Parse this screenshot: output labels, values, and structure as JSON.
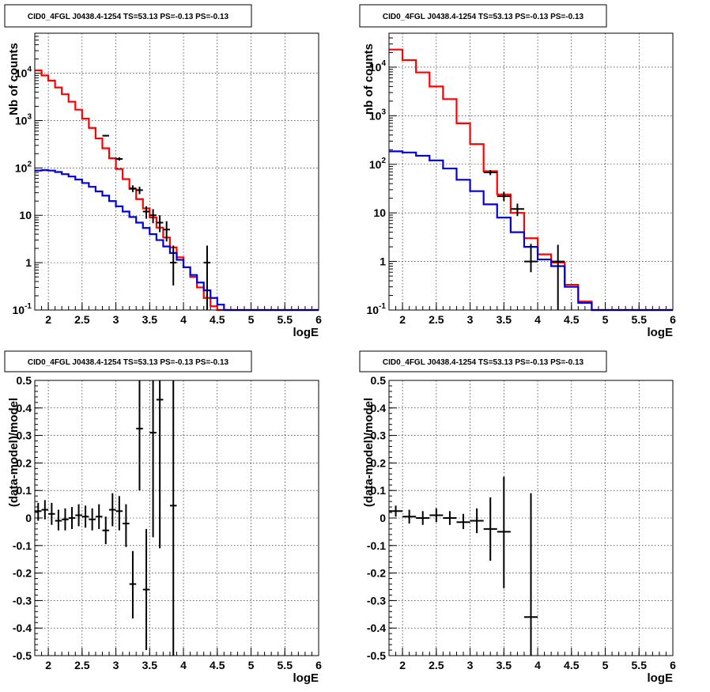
{
  "chart_data": [
    {
      "type": "line",
      "title": "CID0_4FGL J0438.4-1254 TS=53.13 PS=-0.13 PS=-0.13",
      "xlabel": "logE",
      "ylabel": "Nb of counts",
      "xlim": [
        1.8,
        6
      ],
      "ylim": [
        0.1,
        70000
      ],
      "yscale": "log",
      "grid": true,
      "x_ticks": [
        "2",
        "2.5",
        "3",
        "3.5",
        "4",
        "4.5",
        "5",
        "5.5",
        "6"
      ],
      "y_ticks": [
        "10^-1",
        "1",
        "10",
        "10^2",
        "10^3",
        "10^4"
      ],
      "bin_edges": [
        1.8,
        1.9,
        2.0,
        2.1,
        2.2,
        2.3,
        2.4,
        2.5,
        2.6,
        2.7,
        2.8,
        2.9,
        3.0,
        3.1,
        3.2,
        3.3,
        3.4,
        3.5,
        3.6,
        3.7,
        3.8,
        3.9,
        4.0,
        4.1,
        4.2,
        4.3,
        4.4,
        4.5,
        4.6,
        4.7,
        4.8,
        4.9,
        5.0,
        5.1,
        5.2,
        5.3,
        5.4,
        5.5,
        5.6,
        5.7,
        5.8,
        5.9,
        6.0
      ],
      "series": [
        {
          "color": "#ff0000",
          "style": "step",
          "values": [
            11500,
            9000,
            7000,
            5000,
            3600,
            2500,
            1700,
            1100,
            700,
            420,
            260,
            160,
            95,
            58,
            36,
            22,
            14,
            9,
            5.5,
            3.4,
            2.1,
            1.3,
            0.8,
            0.5,
            0.3,
            0.18,
            0.12,
            0.1,
            0.1,
            0.1,
            0.1,
            0.1,
            0.1,
            0.1,
            0.1,
            0.1,
            0.1,
            0.1,
            0.1,
            0.1,
            0.1,
            0.1
          ]
        },
        {
          "color": "#0000dd",
          "style": "step",
          "values": [
            88,
            90,
            88,
            82,
            74,
            66,
            57,
            48,
            40,
            32,
            26,
            20,
            15.5,
            12,
            9.2,
            7,
            5.4,
            4,
            3,
            2.2,
            1.6,
            1.15,
            0.8,
            0.55,
            0.38,
            0.26,
            0.18,
            0.13,
            0.1,
            0.1,
            0.1,
            0.1,
            0.1,
            0.1,
            0.1,
            0.1,
            0.1,
            0.1,
            0.1,
            0.1,
            0.1,
            0.1
          ]
        },
        {
          "color": "#000000",
          "style": "points",
          "points": [
            {
              "x": 2.85,
              "y": 480,
              "xerr": 0.05,
              "ylo": 460,
              "yhi": 500
            },
            {
              "x": 3.05,
              "y": 155,
              "xerr": 0.05,
              "ylo": 143,
              "yhi": 168
            },
            {
              "x": 3.25,
              "y": 37,
              "xerr": 0.05,
              "ylo": 31,
              "yhi": 43
            },
            {
              "x": 3.35,
              "y": 34,
              "xerr": 0.05,
              "ylo": 28,
              "yhi": 40
            },
            {
              "x": 3.45,
              "y": 12,
              "xerr": 0.05,
              "ylo": 8.5,
              "yhi": 15.5
            },
            {
              "x": 3.55,
              "y": 10,
              "xerr": 0.05,
              "ylo": 6.8,
              "yhi": 13.5
            },
            {
              "x": 3.65,
              "y": 7,
              "xerr": 0.05,
              "ylo": 4.4,
              "yhi": 10
            },
            {
              "x": 3.75,
              "y": 5,
              "xerr": 0.05,
              "ylo": 2.8,
              "yhi": 7.5
            },
            {
              "x": 3.85,
              "y": 1,
              "xerr": 0.05,
              "ylo": 0.33,
              "yhi": 2.3
            },
            {
              "x": 4.35,
              "y": 1,
              "xerr": 0.05,
              "ylo": 0.1,
              "yhi": 2.3
            }
          ]
        }
      ]
    },
    {
      "type": "line",
      "title": "CID0_4FGL J0438.4-1254 TS=53.13 PS=-0.13 PS=-0.13",
      "xlabel": "logE",
      "ylabel": "nb of counts",
      "xlim": [
        1.8,
        6
      ],
      "ylim": [
        0.1,
        50000
      ],
      "yscale": "log",
      "grid": true,
      "x_ticks": [
        "2",
        "2.5",
        "3",
        "3.5",
        "4",
        "4.5",
        "5",
        "5.5",
        "6"
      ],
      "y_ticks": [
        "10^-1",
        "1",
        "10",
        "10^2",
        "10^3",
        "10^4"
      ],
      "bin_edges": [
        1.8,
        2.0,
        2.2,
        2.4,
        2.6,
        2.8,
        3.0,
        3.2,
        3.4,
        3.6,
        3.8,
        4.0,
        4.2,
        4.4,
        4.6,
        4.8,
        5.0,
        5.2,
        5.4,
        5.6,
        5.8,
        6.0
      ],
      "series": [
        {
          "color": "#ff0000",
          "style": "step",
          "values": [
            23000,
            14000,
            7800,
            4000,
            2200,
            700,
            260,
            72,
            24,
            10,
            3,
            1.4,
            0.95,
            0.33,
            0.15,
            0.1,
            0.1,
            0.1,
            0.1,
            0.1,
            0.1
          ]
        },
        {
          "color": "#0000dd",
          "style": "step",
          "values": [
            185,
            175,
            150,
            120,
            82,
            48,
            28,
            15,
            8,
            4,
            2,
            1.1,
            0.8,
            0.3,
            0.14,
            0.1,
            0.1,
            0.1,
            0.1,
            0.1,
            0.1
          ]
        },
        {
          "color": "#000000",
          "style": "points",
          "points": [
            {
              "x": 3.3,
              "y": 68,
              "xerr": 0.1,
              "ylo": 60,
              "yhi": 76
            },
            {
              "x": 3.5,
              "y": 22,
              "xerr": 0.1,
              "ylo": 17.5,
              "yhi": 27
            },
            {
              "x": 3.7,
              "y": 12,
              "xerr": 0.1,
              "ylo": 8.6,
              "yhi": 15.5
            },
            {
              "x": 3.9,
              "y": 1,
              "xerr": 0.1,
              "ylo": 0.6,
              "yhi": 2.3
            },
            {
              "x": 4.3,
              "y": 1,
              "xerr": 0.1,
              "ylo": 0.1,
              "yhi": 2.2
            }
          ]
        }
      ]
    },
    {
      "type": "scatter",
      "title": "CID0_4FGL J0438.4-1254 TS=53.13 PS=-0.13 PS=-0.13",
      "xlabel": "logE",
      "ylabel": "(data-model)/model",
      "xlim": [
        1.8,
        6
      ],
      "ylim": [
        -0.5,
        0.5
      ],
      "yscale": "linear",
      "grid": true,
      "x_ticks": [
        "2",
        "2.5",
        "3",
        "3.5",
        "4",
        "4.5",
        "5",
        "5.5",
        "6"
      ],
      "y_ticks": [
        "-0.5",
        "-0.4",
        "-0.3",
        "-0.2",
        "-0.1",
        "0",
        "0.1",
        "0.2",
        "0.3",
        "0.4",
        "0.5"
      ],
      "series": [
        {
          "color": "#000000",
          "style": "points",
          "points": [
            {
              "x": 1.85,
              "y": 0.025,
              "xerr": 0.05,
              "ylo": -0.01,
              "yhi": 0.055
            },
            {
              "x": 1.95,
              "y": 0.03,
              "xerr": 0.05,
              "ylo": -0.005,
              "yhi": 0.065
            },
            {
              "x": 2.05,
              "y": 0.015,
              "xerr": 0.05,
              "ylo": -0.025,
              "yhi": 0.055
            },
            {
              "x": 2.15,
              "y": -0.01,
              "xerr": 0.05,
              "ylo": -0.045,
              "yhi": 0.03
            },
            {
              "x": 2.25,
              "y": -0.005,
              "xerr": 0.05,
              "ylo": -0.045,
              "yhi": 0.035
            },
            {
              "x": 2.35,
              "y": 0.0,
              "xerr": 0.05,
              "ylo": -0.04,
              "yhi": 0.04
            },
            {
              "x": 2.45,
              "y": 0.01,
              "xerr": 0.05,
              "ylo": -0.03,
              "yhi": 0.05
            },
            {
              "x": 2.55,
              "y": 0.005,
              "xerr": 0.05,
              "ylo": -0.035,
              "yhi": 0.045
            },
            {
              "x": 2.65,
              "y": -0.005,
              "xerr": 0.05,
              "ylo": -0.045,
              "yhi": 0.035
            },
            {
              "x": 2.75,
              "y": 0.005,
              "xerr": 0.05,
              "ylo": -0.04,
              "yhi": 0.05
            },
            {
              "x": 2.85,
              "y": -0.045,
              "xerr": 0.05,
              "ylo": -0.095,
              "yhi": 0.005
            },
            {
              "x": 2.95,
              "y": 0.03,
              "xerr": 0.05,
              "ylo": -0.03,
              "yhi": 0.09
            },
            {
              "x": 3.05,
              "y": 0.025,
              "xerr": 0.05,
              "ylo": -0.045,
              "yhi": 0.08
            },
            {
              "x": 3.15,
              "y": -0.02,
              "xerr": 0.05,
              "ylo": -0.105,
              "yhi": 0.05
            },
            {
              "x": 3.25,
              "y": -0.24,
              "xerr": 0.05,
              "ylo": -0.365,
              "yhi": -0.12
            },
            {
              "x": 3.35,
              "y": 0.325,
              "xerr": 0.05,
              "ylo": 0.1,
              "yhi": 0.5
            },
            {
              "x": 3.45,
              "y": -0.26,
              "xerr": 0.05,
              "ylo": -0.48,
              "yhi": -0.04
            },
            {
              "x": 3.55,
              "y": 0.31,
              "xerr": 0.05,
              "ylo": -0.07,
              "yhi": 0.5
            },
            {
              "x": 3.65,
              "y": 0.43,
              "xerr": 0.05,
              "ylo": -0.11,
              "yhi": 0.5
            },
            {
              "x": 3.85,
              "y": 0.045,
              "xerr": 0.05,
              "ylo": -0.5,
              "yhi": 0.5
            }
          ]
        }
      ]
    },
    {
      "type": "scatter",
      "title": "CID0_4FGL J0438.4-1254 TS=53.13 PS=-0.13 PS=-0.13",
      "xlabel": "logE",
      "ylabel": "(data-model)/model",
      "xlim": [
        1.8,
        6
      ],
      "ylim": [
        -0.5,
        0.5
      ],
      "yscale": "linear",
      "grid": true,
      "x_ticks": [
        "2",
        "2.5",
        "3",
        "3.5",
        "4",
        "4.5",
        "5",
        "5.5",
        "6"
      ],
      "y_ticks": [
        "-0.5",
        "-0.4",
        "-0.3",
        "-0.2",
        "-0.1",
        "0",
        "0.1",
        "0.2",
        "0.3",
        "0.4",
        "0.5"
      ],
      "series": [
        {
          "color": "#000000",
          "style": "points",
          "points": [
            {
              "x": 1.9,
              "y": 0.025,
              "xerr": 0.1,
              "ylo": 0.005,
              "yhi": 0.045
            },
            {
              "x": 2.1,
              "y": 0.005,
              "xerr": 0.1,
              "ylo": -0.02,
              "yhi": 0.03
            },
            {
              "x": 2.3,
              "y": 0.0,
              "xerr": 0.1,
              "ylo": -0.025,
              "yhi": 0.025
            },
            {
              "x": 2.5,
              "y": 0.01,
              "xerr": 0.1,
              "ylo": -0.015,
              "yhi": 0.035
            },
            {
              "x": 2.7,
              "y": 0.0,
              "xerr": 0.1,
              "ylo": -0.025,
              "yhi": 0.025
            },
            {
              "x": 2.9,
              "y": -0.015,
              "xerr": 0.1,
              "ylo": -0.04,
              "yhi": 0.015
            },
            {
              "x": 3.1,
              "y": -0.01,
              "xerr": 0.1,
              "ylo": -0.055,
              "yhi": 0.035
            },
            {
              "x": 3.3,
              "y": -0.04,
              "xerr": 0.1,
              "ylo": -0.155,
              "yhi": 0.075
            },
            {
              "x": 3.5,
              "y": -0.05,
              "xerr": 0.1,
              "ylo": -0.255,
              "yhi": 0.15
            },
            {
              "x": 3.9,
              "y": -0.36,
              "xerr": 0.1,
              "ylo": -0.5,
              "yhi": 0.09
            }
          ]
        }
      ]
    }
  ]
}
